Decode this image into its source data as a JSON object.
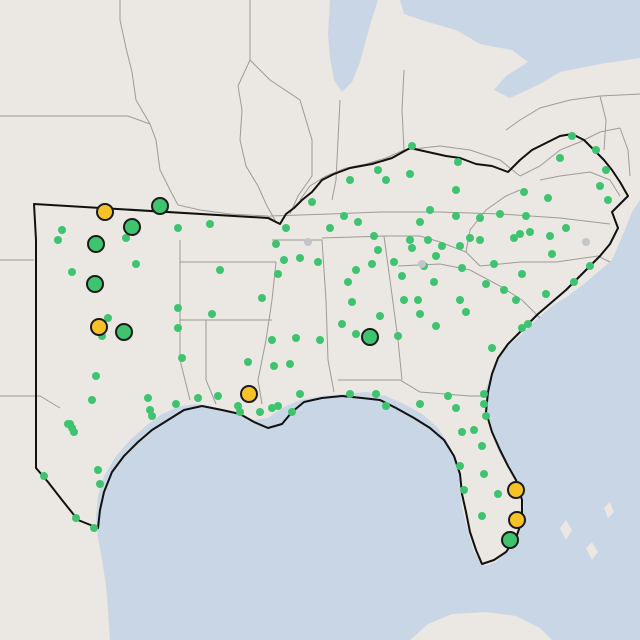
{
  "map": {
    "colors": {
      "land": "#ebe7e2",
      "water": "#c9d6e6",
      "state_border": "#9e9b98",
      "region_outline": "#111111",
      "minor_dot": "#3ec46e",
      "inactive_dot": "#c3c5c6",
      "major_green": "#3ec46e",
      "major_yellow": "#f6c228",
      "marker_stroke": "#1a1a1a"
    },
    "major_sites": [
      {
        "id": "ok-1",
        "status": "yellow"
      },
      {
        "id": "ok-2",
        "status": "green"
      },
      {
        "id": "ok-3",
        "status": "green"
      },
      {
        "id": "ok-4",
        "status": "green"
      },
      {
        "id": "ok-5",
        "status": "green"
      },
      {
        "id": "tx-1",
        "status": "yellow"
      },
      {
        "id": "tx-2",
        "status": "green"
      },
      {
        "id": "la-1",
        "status": "yellow"
      },
      {
        "id": "al-1",
        "status": "green"
      },
      {
        "id": "fl-1",
        "status": "yellow"
      },
      {
        "id": "fl-2",
        "status": "yellow"
      },
      {
        "id": "fl-3",
        "status": "green"
      }
    ]
  }
}
